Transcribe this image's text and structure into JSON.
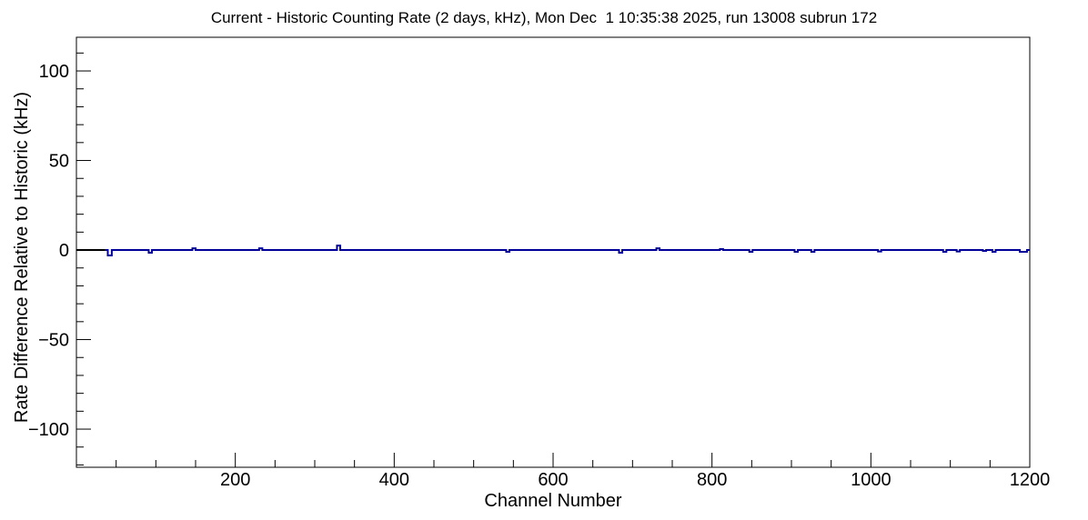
{
  "window": {
    "background_color": "#ffffff"
  },
  "chart_data": {
    "type": "line",
    "title": "Current - Historic Counting Rate (2 days, kHz), Mon Dec  1 10:35:38 2025, run 13008 subrun 172",
    "xlabel": "Channel Number",
    "ylabel": "Rate Difference Relative to Historic (kHz)",
    "run": "13008",
    "subrun": "172",
    "timestamp": "Mon Dec  1 10:35:38 2025",
    "xlim": [
      0,
      1200
    ],
    "ylim": [
      -121.3,
      118.8
    ],
    "x_major_ticks": [
      200,
      400,
      600,
      800,
      1000,
      1200
    ],
    "x_minor_step": 50,
    "y_major_ticks": [
      -100,
      -50,
      0,
      50,
      100
    ],
    "y_minor_step": 10,
    "grid": false,
    "legend_position": "none",
    "frame_color": "#000000",
    "background_color": "#ffffff",
    "series": [
      {
        "name": "zero-baseline-black",
        "color": "#000000",
        "baseline": 0,
        "range": [
          0,
          36
        ],
        "spikes": []
      },
      {
        "name": "rate-difference",
        "color": "#000099",
        "baseline": 0,
        "range": [
          36,
          1200
        ],
        "spikes": [
          [
            42,
            -3,
            5
          ],
          [
            93,
            -1.5,
            4
          ],
          [
            148,
            1,
            4
          ],
          [
            232,
            1,
            4
          ],
          [
            330,
            2.5,
            4
          ],
          [
            543,
            -1,
            4
          ],
          [
            685,
            -1.5,
            4
          ],
          [
            732,
            1,
            4
          ],
          [
            812,
            0.5,
            4
          ],
          [
            849,
            -1,
            4
          ],
          [
            906,
            -1,
            4
          ],
          [
            927,
            -1,
            4
          ],
          [
            1011,
            -0.8,
            4
          ],
          [
            1093,
            -1,
            4
          ],
          [
            1110,
            -0.8,
            4
          ],
          [
            1143,
            -0.5,
            4
          ],
          [
            1155,
            -1,
            4
          ],
          [
            1192,
            -1,
            9
          ]
        ]
      }
    ]
  }
}
